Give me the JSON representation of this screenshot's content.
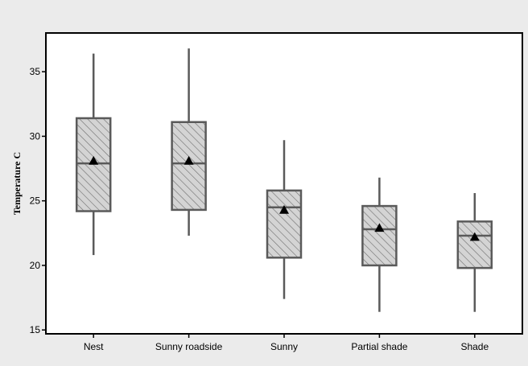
{
  "colors": {
    "outer_background": "#ebebeb",
    "plot_background": "#ffffff",
    "box_fill": "#d4d4d4",
    "hatch": "#6e6e6e",
    "stroke": "#5a5a5a",
    "mean_marker": "#000000"
  },
  "chart_data": {
    "type": "box",
    "title": "",
    "xlabel": "",
    "ylabel": "Temperature C",
    "ylim": [
      14.7,
      38.0
    ],
    "yticks": [
      15,
      20,
      25,
      30,
      35
    ],
    "grid": false,
    "legend": "none",
    "box_pattern": "diagonal-hatch",
    "mean_marker": "triangle",
    "categories": [
      "Nest",
      "Sunny roadside",
      "Sunny",
      "Partial shade",
      "Shade"
    ],
    "boxes": [
      {
        "category": "Nest",
        "whisker_low": 20.8,
        "q1": 24.2,
        "median": 27.9,
        "q3": 31.4,
        "whisker_high": 36.4,
        "mean": 28.1
      },
      {
        "category": "Sunny roadside",
        "whisker_low": 22.3,
        "q1": 24.3,
        "median": 27.9,
        "q3": 31.1,
        "whisker_high": 36.8,
        "mean": 28.1
      },
      {
        "category": "Sunny",
        "whisker_low": 17.4,
        "q1": 20.6,
        "median": 24.5,
        "q3": 25.8,
        "whisker_high": 29.7,
        "mean": 24.3
      },
      {
        "category": "Partial shade",
        "whisker_low": 16.4,
        "q1": 20.0,
        "median": 22.8,
        "q3": 24.6,
        "whisker_high": 26.8,
        "mean": 22.9
      },
      {
        "category": "Shade",
        "whisker_low": 16.4,
        "q1": 19.8,
        "median": 22.3,
        "q3": 23.4,
        "whisker_high": 25.6,
        "mean": 22.2
      }
    ]
  }
}
